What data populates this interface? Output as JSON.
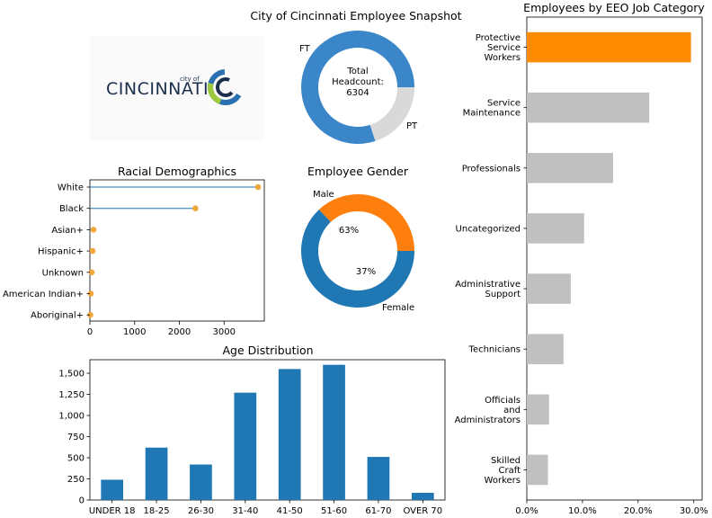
{
  "logo": {
    "wordmark": "CINCINNATI",
    "city_of": "city of"
  },
  "chart_data": [
    {
      "id": "headcount",
      "type": "pie",
      "title": "City of Cincinnati Employee Snapshot",
      "center_text": [
        "Total",
        "Headcount:",
        "6304"
      ],
      "labels": [
        "FT",
        "PT"
      ],
      "values": [
        0.8,
        0.2
      ],
      "colors": [
        "#3a86c8",
        "#d9d9d9"
      ]
    },
    {
      "id": "race",
      "type": "scatter",
      "title": "Racial Demographics",
      "categories": [
        "White",
        "Black",
        "Asian+",
        "Hispanic+",
        "Unknown",
        "American Indian+",
        "Aboriginal+"
      ],
      "values": [
        3760,
        2360,
        80,
        60,
        40,
        20,
        10
      ],
      "xlim": [
        0,
        3900
      ],
      "xticks": [
        0,
        1000,
        2000,
        3000
      ],
      "colors": {
        "stem": "#1f77b4",
        "dot": "#f2a73b"
      }
    },
    {
      "id": "gender",
      "type": "pie",
      "title": "Employee Gender",
      "labels": [
        "Male",
        "Female"
      ],
      "values": [
        63,
        37
      ],
      "pct_labels": [
        "63%",
        "37%"
      ],
      "colors": [
        "#1f77b4",
        "#ff7f0e"
      ]
    },
    {
      "id": "age",
      "type": "bar",
      "title": "Age Distribution",
      "categories": [
        "UNDER 18",
        "18-25",
        "26-30",
        "31-40",
        "41-50",
        "51-60",
        "61-70",
        "OVER 70"
      ],
      "values": [
        240,
        620,
        420,
        1270,
        1550,
        1600,
        510,
        85
      ],
      "ylim": [
        0,
        1660
      ],
      "yticks": [
        0,
        250,
        500,
        750,
        1000,
        1250,
        1500
      ],
      "color": "#1f77b4"
    },
    {
      "id": "eeo",
      "type": "bar",
      "orientation": "horizontal",
      "title": "Employees by EEO Job Category",
      "categories": [
        "Protective\nService\nWorkers",
        "Service\nMaintenance",
        "Professionals",
        "Uncategorized",
        "Administrative\nSupport",
        "Technicians",
        "Officials\nand\nAdministrators",
        "Skilled\nCraft\nWorkers"
      ],
      "values": [
        29.5,
        22.0,
        15.5,
        10.3,
        7.9,
        6.6,
        4.0,
        3.8
      ],
      "xlim": [
        0,
        31.5
      ],
      "xticks": [
        "0.0%",
        "10.0%",
        "20.0%",
        "30.0%"
      ],
      "colors": {
        "highlight": "#ff8c00",
        "default": "#c0c0c0"
      }
    }
  ]
}
